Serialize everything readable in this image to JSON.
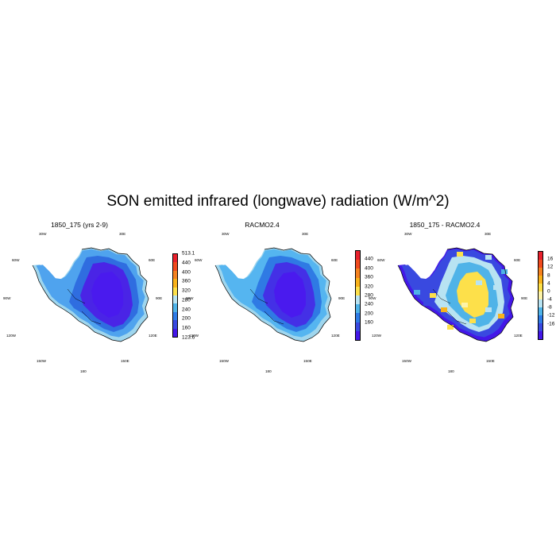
{
  "figure": {
    "title": "SON emitted infrared (longwave) radiation (W/m^2)"
  },
  "panels": [
    {
      "title": "1850_175 (yrs 2-9)",
      "lon_labels": {
        "n_left": "30W",
        "n_right": "30E",
        "w_top": "60W",
        "w_mid": "90W",
        "w_bot": "120W",
        "e_top": "60E",
        "e_mid": "90E",
        "e_bot": "120E",
        "s_left": "150W",
        "s_mid": "180",
        "s_right": "150E"
      },
      "colorbar": {
        "labels": [
          "513.1",
          "440",
          "400",
          "360",
          "320",
          "280",
          "240",
          "200",
          "160",
          "123.6"
        ],
        "colors": [
          "#e8202c",
          "#f04a1e",
          "#f5821f",
          "#f9b21a",
          "#fde04a",
          "#b8e3f2",
          "#4fb3e8",
          "#2e7be6",
          "#3949e0",
          "#4317e8"
        ]
      },
      "field": {
        "coast": "#9fd6ee",
        "outer": "#4fa3ee",
        "mid": "#2f6de0",
        "inner": "#4a24e6",
        "core": "#4a1aee"
      }
    },
    {
      "title": "RACMO2.4",
      "lon_labels": {
        "n_left": "30W",
        "n_right": "30E",
        "w_top": "60W",
        "w_mid": "90W",
        "w_bot": "120W",
        "e_top": "60E",
        "e_mid": "90E",
        "e_bot": "120E",
        "s_left": "150W",
        "s_mid": "180",
        "s_right": "150E"
      },
      "colorbar": {
        "labels": [
          "440",
          "400",
          "360",
          "320",
          "280",
          "240",
          "200",
          "160"
        ],
        "colors": [
          "#e8202c",
          "#f04a1e",
          "#f5821f",
          "#f9b21a",
          "#fde04a",
          "#b8e3f2",
          "#4fb3e8",
          "#2e7be6",
          "#3949e0",
          "#4317e8"
        ]
      },
      "field": {
        "coast": "#9fd6ee",
        "outer": "#55b5f0",
        "mid": "#2f7ae4",
        "inner": "#4430e6",
        "core": "#4a1aee"
      }
    },
    {
      "title": "1850_175 - RACMO2.4",
      "lon_labels": {
        "n_left": "30W",
        "n_right": "30E",
        "w_top": "60W",
        "w_mid": "90W",
        "w_bot": "120W",
        "e_top": "60E",
        "e_mid": "90E",
        "e_bot": "120E",
        "s_left": "150W",
        "s_mid": "180",
        "s_right": "150E"
      },
      "colorbar": {
        "labels": [
          "16",
          "12",
          "8",
          "4",
          "0",
          "-4",
          "-8",
          "-12",
          "-16"
        ],
        "colors": [
          "#e8202c",
          "#f04a1e",
          "#f5821f",
          "#f9b21a",
          "#fde04a",
          "#fdf3a8",
          "#b8e3f2",
          "#4fb3e8",
          "#2e7be6",
          "#3949e0",
          "#4317e8"
        ]
      },
      "field": {
        "coast": "#4317e8",
        "outer": "#3949e0",
        "mid": "#b8e3f2",
        "inner": "#4fb3e8",
        "core": "#fde04a"
      }
    }
  ]
}
